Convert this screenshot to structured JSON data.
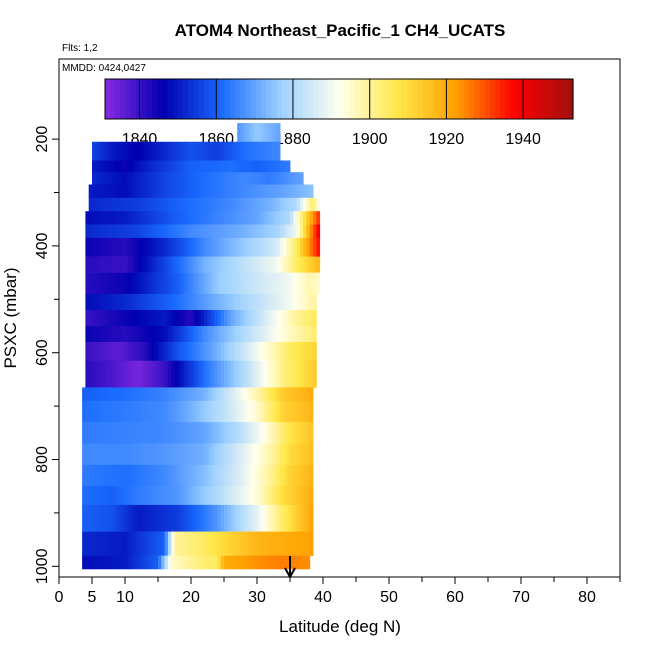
{
  "chart_data": {
    "type": "heatmap",
    "title": "ATOM4 Northeast_Pacific_1 CH4_UCATS",
    "annotations": [
      "Flts: 1,2",
      "MMDD: 0424,0427"
    ],
    "xlabel": "Latitude (deg N)",
    "ylabel": "PSXC (mbar)",
    "xlim": [
      0,
      85
    ],
    "ylim": [
      1020,
      50
    ],
    "y_inverted": true,
    "x_ticks": [
      0,
      5,
      10,
      20,
      30,
      40,
      50,
      60,
      70,
      80
    ],
    "x_tick_labels": [
      "0",
      "5",
      "10",
      "20",
      "30",
      "40",
      "50",
      "60",
      "70",
      "80"
    ],
    "y_ticks": [
      200,
      400,
      600,
      800,
      1000
    ],
    "y_tick_labels": [
      "200",
      "400",
      "600",
      "800",
      "1000"
    ],
    "colorbar": {
      "range": [
        1831,
        1953
      ],
      "ticks": [
        1840,
        1860,
        1880,
        1900,
        1920,
        1940
      ],
      "tick_labels": [
        "1840",
        "1860",
        "1880",
        "1900",
        "1920",
        "1940"
      ],
      "colors": [
        "#8a2be2",
        "#0000b0",
        "#1a6bff",
        "#9cd0ff",
        "#ffffee",
        "#ffe84a",
        "#ffa000",
        "#ff0000",
        "#a01010"
      ]
    },
    "marker": {
      "label": "arrow",
      "x": 35
    }
  }
}
